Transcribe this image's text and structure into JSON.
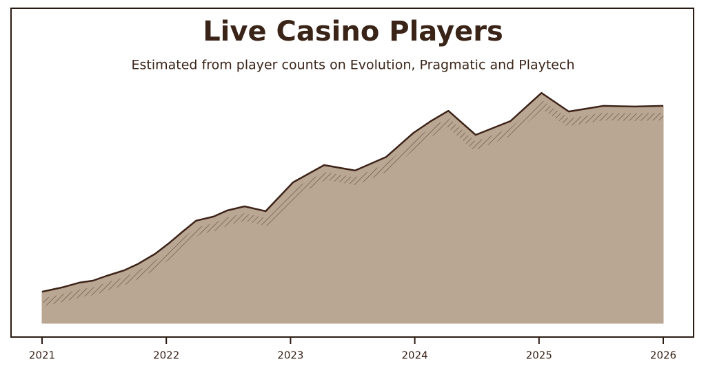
{
  "chart_data": {
    "type": "area",
    "title": "Live Casino Players",
    "subtitle": "Estimated from player counts on Evolution, Pragmatic and Playtech",
    "x": [
      2021.0,
      2021.16,
      2021.3,
      2021.41,
      2021.52,
      2021.66,
      2021.77,
      2021.91,
      2022.02,
      2022.13,
      2022.24,
      2022.38,
      2022.49,
      2022.63,
      2022.8,
      2023.02,
      2023.27,
      2023.52,
      2023.77,
      2023.99,
      2024.13,
      2024.27,
      2024.49,
      2024.77,
      2025.02,
      2025.24,
      2025.52,
      2025.77,
      2026.0
    ],
    "values": [
      13.9,
      15.8,
      17.9,
      18.8,
      20.9,
      23.3,
      26.1,
      30.6,
      35.2,
      40.3,
      45.2,
      47.0,
      49.7,
      51.5,
      49.4,
      62.1,
      69.7,
      67.3,
      73.3,
      83.9,
      89.1,
      93.6,
      83.0,
      89.1,
      101.5,
      93.3,
      95.8,
      95.5,
      95.8
    ],
    "color": "#b9a794",
    "line_color": "#3d2318",
    "xlim": [
      2021,
      2026
    ],
    "xticks": [
      2021,
      2022,
      2023,
      2024,
      2025,
      2026
    ],
    "ylim": [
      0,
      110
    ]
  }
}
